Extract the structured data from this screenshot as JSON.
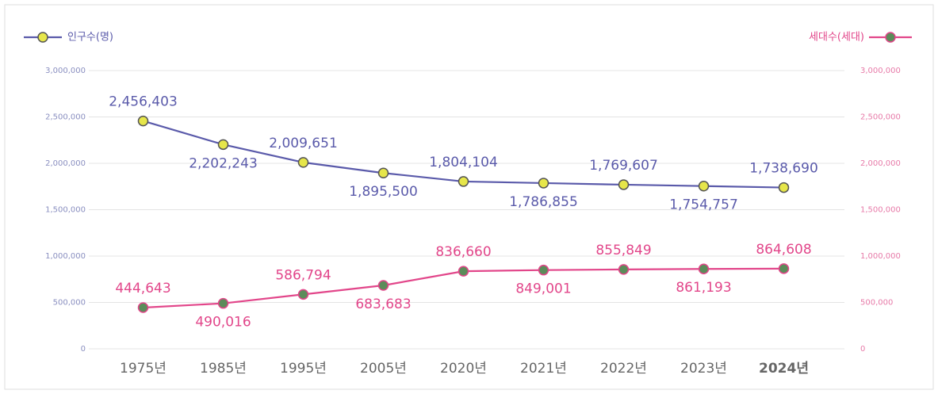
{
  "chart_data": {
    "type": "line",
    "categories": [
      "1975년",
      "1985년",
      "1995년",
      "2005년",
      "2020년",
      "2021년",
      "2022년",
      "2023년",
      "2024년"
    ],
    "series": [
      {
        "name": "인구수(명)",
        "color": "#5a5aaa",
        "marker_color": "#e6e64a",
        "values": [
          2456403,
          2202243,
          2009651,
          1895500,
          1804104,
          1786855,
          1769607,
          1754757,
          1738690
        ],
        "value_labels": [
          "2,456,403",
          "2,202,243",
          "2,009,651",
          "1,895,500",
          "1,804,104",
          "1,786,855",
          "1,769,607",
          "1,754,757",
          "1,738,690"
        ]
      },
      {
        "name": "세대수(세대)",
        "color": "#e2468a",
        "marker_color": "#5b8c5a",
        "axis": "y2",
        "values": [
          444643,
          490016,
          586794,
          683683,
          836660,
          849001,
          855849,
          861193,
          864608
        ],
        "value_labels": [
          "444,643",
          "490,016",
          "586,794",
          "683,683",
          "836,660",
          "849,001",
          "855,849",
          "861,193",
          "864,608"
        ]
      }
    ],
    "ylim": [
      0,
      3000000
    ],
    "yticks": [
      0,
      {
        "value": 500000,
        "label": "500,000"
      },
      {
        "value": 1000000,
        "label": "1,000,000"
      },
      {
        "value": 1500000,
        "label": "1,500,000"
      },
      {
        "value": 2000000,
        "label": "2,000,000"
      },
      {
        "value": 2500000,
        "label": "2,500,000"
      },
      {
        "value": 3000000,
        "label": "3,000,000"
      }
    ],
    "y2lim": [
      0,
      3000000
    ],
    "y2ticks": [
      0,
      {
        "value": 500000,
        "label": "500,000"
      },
      {
        "value": 1000000,
        "label": "1,000,000"
      },
      {
        "value": 1500000,
        "label": "1,500,000"
      },
      {
        "value": 2000000,
        "label": "2,000,000"
      },
      {
        "value": 2500000,
        "label": "2,500,000"
      },
      {
        "value": 3000000,
        "label": "3,000,000"
      }
    ],
    "grid": true
  }
}
